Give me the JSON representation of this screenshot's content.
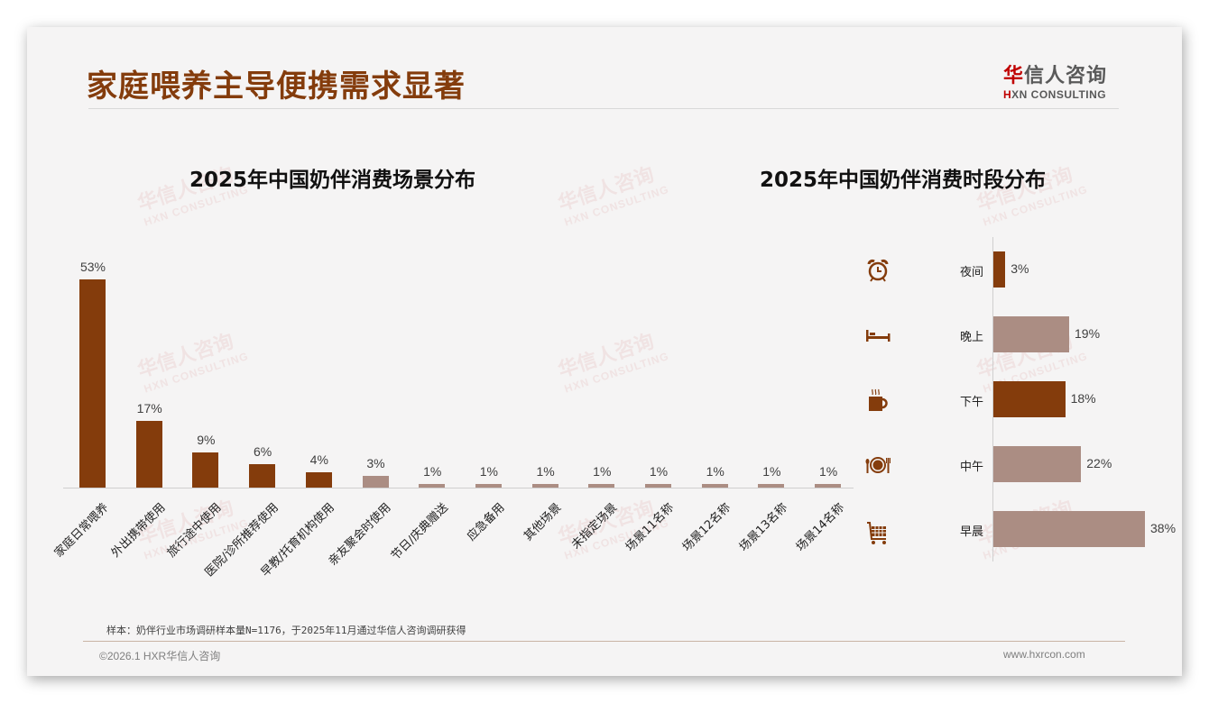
{
  "header": {
    "title": "家庭喂养主导便携需求显著",
    "logo_cn_first": "华",
    "logo_cn_rest": "信人咨询",
    "logo_en_first": "H",
    "logo_en_rest": "XN CONSULTING"
  },
  "watermark": {
    "cn": "华信人咨询",
    "en": "HXN CONSULTING"
  },
  "colors": {
    "primary": "#843c0c",
    "secondary": "#ab8d83",
    "title": "#843c0c"
  },
  "chart_data": [
    {
      "type": "bar",
      "title": "2025年中国奶伴消费场景分布",
      "categories": [
        "家庭日常喂养",
        "外出携带使用",
        "旅行途中使用",
        "医院/诊所推荐使用",
        "早教/托育机构使用",
        "亲友聚会时使用",
        "节日/庆典赠送",
        "应急备用",
        "其他场景",
        "未指定场景",
        "场景11名称",
        "场景12名称",
        "场景13名称",
        "场景14名称"
      ],
      "values": [
        53,
        17,
        9,
        6,
        4,
        3,
        1,
        1,
        1,
        1,
        1,
        1,
        1,
        1
      ],
      "labels": [
        "53%",
        "17%",
        "9%",
        "6%",
        "4%",
        "3%",
        "1%",
        "1%",
        "1%",
        "1%",
        "1%",
        "1%",
        "1%",
        "1%"
      ],
      "highlight": [
        true,
        true,
        true,
        true,
        true,
        false,
        false,
        false,
        false,
        false,
        false,
        false,
        false,
        false
      ],
      "xlabel": "",
      "ylabel": "",
      "ylim": [
        0,
        55
      ],
      "grid": false,
      "legend": "none"
    },
    {
      "type": "bar",
      "orientation": "horizontal",
      "title": "2025年中国奶伴消费时段分布",
      "categories": [
        "夜间",
        "晚上",
        "下午",
        "中午",
        "早晨"
      ],
      "values": [
        3,
        19,
        18,
        22,
        38
      ],
      "labels": [
        "3%",
        "19%",
        "18%",
        "22%",
        "38%"
      ],
      "highlight": [
        true,
        false,
        true,
        false,
        false
      ],
      "icons": [
        "alarm-clock-icon",
        "bed-icon",
        "coffee-cup-icon",
        "plate-cutlery-icon",
        "shopping-cart-icon"
      ],
      "xlim": [
        0,
        40
      ],
      "grid": false,
      "legend": "none"
    }
  ],
  "footer": {
    "note": "样本：奶伴行业市场调研样本量N=1176，于2025年11月通过华信人咨询调研获得",
    "copyright": "©2026.1 HXR华信人咨询",
    "website": "www.hxrcon.com"
  }
}
